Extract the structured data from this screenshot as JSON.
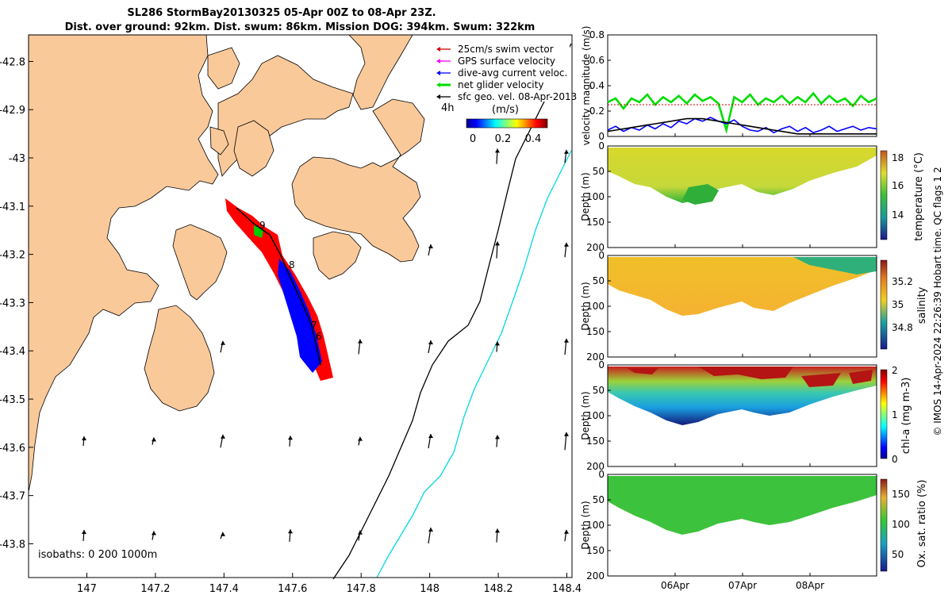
{
  "title": {
    "line1": "SL286 StormBay20130325 05-Apr 00Z to 08-Apr 23Z.",
    "line2": "Dist. over ground: 92km. Dist. swum: 86km. Mission DOG: 394km. Swum: 322km"
  },
  "copyright": "© IMOS 14-Apr-2024 22:26:39 Hobart time. QC flags 1  2",
  "colors": {
    "land": "#fac99a",
    "sea": "#ffffff",
    "track_red": "#ff0000",
    "track_blue": "#0000ff",
    "swim": "#cc0000",
    "gps": "#ff00ff",
    "diveavg": "#0000ff",
    "net": "#00dd00",
    "geo": "#000000",
    "isobath200": "#000000",
    "isobath1000": "#00d8e0"
  },
  "map": {
    "legend": {
      "items": [
        {
          "label": "25cm/s swim vector",
          "color": "#cc0000"
        },
        {
          "label": "GPS surface velocity",
          "color": "#ff00ff"
        },
        {
          "label": "dive-avg current veloc.",
          "color": "#0000ff"
        },
        {
          "label": "net glider velocity",
          "color": "#00dd00"
        },
        {
          "label": "sfc geo. vel. 08-Apr-2013",
          "color": "#000000"
        }
      ],
      "hours": "4h",
      "colorbar_title": "(m/s)",
      "colorbar_ticks": [
        "0",
        "0.2",
        "0.4"
      ]
    },
    "isobaths_label": "isobaths: 0   200  1000m",
    "track_labels": [
      "9",
      "8",
      "7",
      "6"
    ]
  },
  "chart_data": [
    {
      "type": "line",
      "title": "",
      "xlabel": "",
      "ylabel": "velocity magnitude (m/s)",
      "ylim": [
        0,
        0.8
      ],
      "yticks": [
        "0",
        "0.2",
        "0.4",
        "0.6",
        "0.8"
      ],
      "series": [
        {
          "name": "net glider velocity",
          "color": "#00dd00",
          "values": [
            0.27,
            0.3,
            0.22,
            0.3,
            0.27,
            0.33,
            0.25,
            0.31,
            0.27,
            0.32,
            0.26,
            0.33,
            0.28,
            0.31,
            0.26,
            0.05,
            0.31,
            0.27,
            0.33,
            0.25,
            0.3,
            0.27,
            0.32,
            0.26,
            0.31,
            0.27,
            0.34,
            0.26,
            0.32,
            0.27,
            0.3,
            0.24,
            0.32,
            0.27,
            0.3
          ]
        },
        {
          "name": "dive-avg current veloc.",
          "color": "#0000ff",
          "values": [
            0.05,
            0.08,
            0.04,
            0.07,
            0.05,
            0.09,
            0.06,
            0.1,
            0.07,
            0.12,
            0.1,
            0.14,
            0.12,
            0.15,
            0.12,
            0.1,
            0.13,
            0.08,
            0.05,
            0.04,
            0.07,
            0.03,
            0.06,
            0.08,
            0.04,
            0.07,
            0.03,
            0.05,
            0.08,
            0.04,
            0.06,
            0.08,
            0.05,
            0.07,
            0.06
          ]
        },
        {
          "name": "sfc geo. vel.",
          "color": "#000000",
          "values": [
            0.04,
            0.05,
            0.06,
            0.07,
            0.08,
            0.09,
            0.1,
            0.11,
            0.12,
            0.13,
            0.14,
            0.14,
            0.14,
            0.13,
            0.12,
            0.11,
            0.1,
            0.09,
            0.08,
            0.07,
            0.06,
            0.05,
            0.04,
            0.03,
            0.02,
            0.02,
            0.02,
            0.02,
            0.02,
            0.02,
            0.02,
            0.02,
            0.02,
            0.02,
            0.02
          ]
        },
        {
          "name": "25cm/s swim vector",
          "color": "#cc0000",
          "values": [
            0.25,
            0.25,
            0.25,
            0.25,
            0.25,
            0.25,
            0.25,
            0.25,
            0.25,
            0.25,
            0.25,
            0.25,
            0.25,
            0.25,
            0.25,
            0.25,
            0.25,
            0.25,
            0.25,
            0.25,
            0.25,
            0.25,
            0.25,
            0.25,
            0.25,
            0.25,
            0.25,
            0.25,
            0.25,
            0.25,
            0.25,
            0.25,
            0.25,
            0.25,
            0.25
          ]
        }
      ]
    },
    {
      "type": "heatmap",
      "ylabel": "Depth (m)",
      "yticks": [
        "0",
        "50",
        "100",
        "150",
        "200"
      ],
      "colorbar_label": "temperature (°C)",
      "colorbar_ticks": [
        "18",
        "16",
        "14"
      ]
    },
    {
      "type": "heatmap",
      "ylabel": "Depth (m)",
      "yticks": [
        "0",
        "50",
        "100",
        "150",
        "200"
      ],
      "colorbar_label": "salinity",
      "colorbar_ticks": [
        "35.2",
        "35",
        "34.8"
      ]
    },
    {
      "type": "heatmap",
      "ylabel": "Depth (m)",
      "yticks": [
        "0",
        "50",
        "100",
        "150",
        "200"
      ],
      "colorbar_label": "chl-a (mg m-3)",
      "colorbar_ticks": [
        "2",
        "1",
        "0"
      ]
    },
    {
      "type": "heatmap",
      "ylabel": "Depth (m)",
      "yticks": [
        "0",
        "50",
        "100",
        "150",
        "200"
      ],
      "colorbar_label": "Ox. sat. ratio (%)",
      "colorbar_ticks": [
        "150",
        "100",
        "50"
      ],
      "xticks": [
        "06Apr",
        "07Apr",
        "08Apr"
      ]
    },
    {
      "type": "map",
      "xticks": [
        "147",
        "147.2",
        "147.4",
        "147.6",
        "147.8",
        "148",
        "148.2",
        "148.4"
      ],
      "yticks": [
        "-42.8",
        "-42.9",
        "-43",
        "-43.1",
        "-43.2",
        "-43.3",
        "-43.4",
        "-43.5",
        "-43.6",
        "-43.7",
        "-43.8"
      ]
    }
  ]
}
